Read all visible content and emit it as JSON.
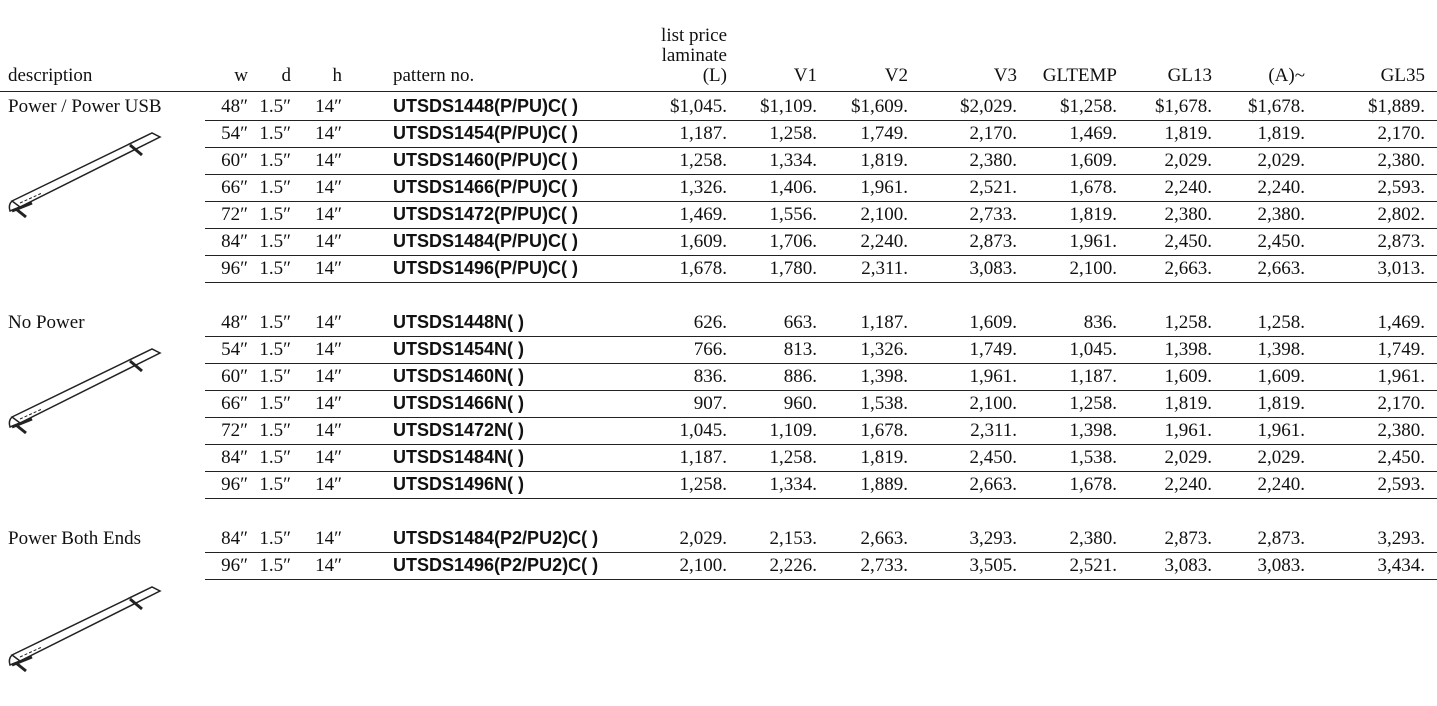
{
  "header": {
    "columns": [
      "description",
      "w",
      "d",
      "h",
      "pattern no.",
      "list price\nlaminate\n(L)",
      "V1",
      "V2",
      "V3",
      "GLTEMP",
      "GL13",
      "(A)~",
      "GL35"
    ]
  },
  "sections": [
    {
      "description": "Power / Power USB",
      "rows": [
        [
          "48″",
          "1.5″",
          "14″",
          "UTSDS1448(P/PU)C( )",
          "$1,045.",
          "$1,109.",
          "$1,609.",
          "$2,029.",
          "$1,258.",
          "$1,678.",
          "$1,678.",
          "$1,889."
        ],
        [
          "54″",
          "1.5″",
          "14″",
          "UTSDS1454(P/PU)C( )",
          "1,187.",
          "1,258.",
          "1,749.",
          "2,170.",
          "1,469.",
          "1,819.",
          "1,819.",
          "2,170."
        ],
        [
          "60″",
          "1.5″",
          "14″",
          "UTSDS1460(P/PU)C( )",
          "1,258.",
          "1,334.",
          "1,819.",
          "2,380.",
          "1,609.",
          "2,029.",
          "2,029.",
          "2,380."
        ],
        [
          "66″",
          "1.5″",
          "14″",
          "UTSDS1466(P/PU)C( )",
          "1,326.",
          "1,406.",
          "1,961.",
          "2,521.",
          "1,678.",
          "2,240.",
          "2,240.",
          "2,593."
        ],
        [
          "72″",
          "1.5″",
          "14″",
          "UTSDS1472(P/PU)C( )",
          "1,469.",
          "1,556.",
          "2,100.",
          "2,733.",
          "1,819.",
          "2,380.",
          "2,380.",
          "2,802."
        ],
        [
          "84″",
          "1.5″",
          "14″",
          "UTSDS1484(P/PU)C( )",
          "1,609.",
          "1,706.",
          "2,240.",
          "2,873.",
          "1,961.",
          "2,450.",
          "2,450.",
          "2,873."
        ],
        [
          "96″",
          "1.5″",
          "14″",
          "UTSDS1496(P/PU)C( )",
          "1,678.",
          "1,780.",
          "2,311.",
          "3,083.",
          "2,100.",
          "2,663.",
          "2,663.",
          "3,013."
        ]
      ]
    },
    {
      "description": "No Power",
      "rows": [
        [
          "48″",
          "1.5″",
          "14″",
          "UTSDS1448N( )",
          "626.",
          "663.",
          "1,187.",
          "1,609.",
          "836.",
          "1,258.",
          "1,258.",
          "1,469."
        ],
        [
          "54″",
          "1.5″",
          "14″",
          "UTSDS1454N( )",
          "766.",
          "813.",
          "1,326.",
          "1,749.",
          "1,045.",
          "1,398.",
          "1,398.",
          "1,749."
        ],
        [
          "60″",
          "1.5″",
          "14″",
          "UTSDS1460N( )",
          "836.",
          "886.",
          "1,398.",
          "1,961.",
          "1,187.",
          "1,609.",
          "1,609.",
          "1,961."
        ],
        [
          "66″",
          "1.5″",
          "14″",
          "UTSDS1466N( )",
          "907.",
          "960.",
          "1,538.",
          "2,100.",
          "1,258.",
          "1,819.",
          "1,819.",
          "2,170."
        ],
        [
          "72″",
          "1.5″",
          "14″",
          "UTSDS1472N( )",
          "1,045.",
          "1,109.",
          "1,678.",
          "2,311.",
          "1,398.",
          "1,961.",
          "1,961.",
          "2,380."
        ],
        [
          "84″",
          "1.5″",
          "14″",
          "UTSDS1484N( )",
          "1,187.",
          "1,258.",
          "1,819.",
          "2,450.",
          "1,538.",
          "2,029.",
          "2,029.",
          "2,450."
        ],
        [
          "96″",
          "1.5″",
          "14″",
          "UTSDS1496N( )",
          "1,258.",
          "1,334.",
          "1,889.",
          "2,663.",
          "1,678.",
          "2,240.",
          "2,240.",
          "2,593."
        ]
      ]
    },
    {
      "description": "Power Both Ends",
      "rows": [
        [
          "84″",
          "1.5″",
          "14″",
          "UTSDS1484(P2/PU2)C( )",
          "2,029.",
          "2,153.",
          "2,663.",
          "3,293.",
          "2,380.",
          "2,873.",
          "2,873.",
          "3,293."
        ],
        [
          "96″",
          "1.5″",
          "14″",
          "UTSDS1496(P2/PU2)C( )",
          "2,100.",
          "2,226.",
          "2,733.",
          "3,505.",
          "2,521.",
          "3,083.",
          "3,083.",
          "3,434."
        ]
      ]
    }
  ]
}
